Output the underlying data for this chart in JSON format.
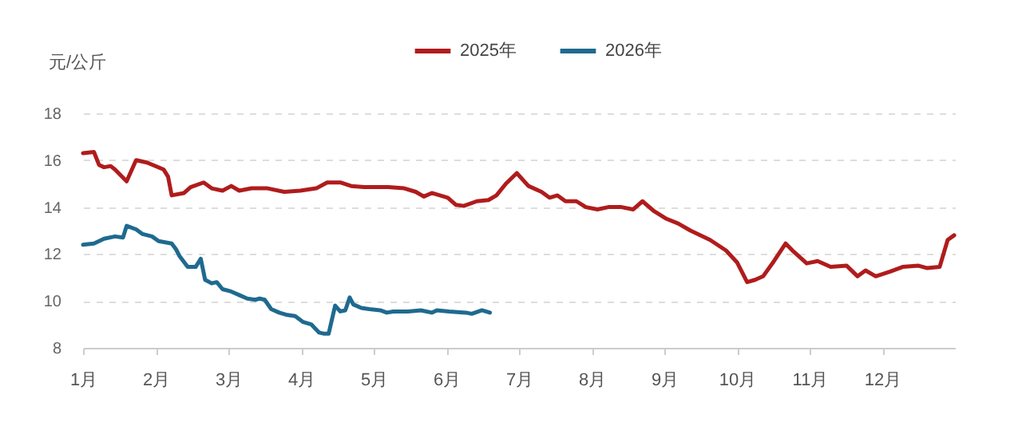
{
  "chart_data": {
    "type": "line",
    "ylabel": "元/公斤",
    "xlim": [
      1,
      13
    ],
    "xticks": [
      {
        "value": 1,
        "label": "1月"
      },
      {
        "value": 2,
        "label": "2月"
      },
      {
        "value": 3,
        "label": "3月"
      },
      {
        "value": 4,
        "label": "4月"
      },
      {
        "value": 5,
        "label": "5月"
      },
      {
        "value": 6,
        "label": "6月"
      },
      {
        "value": 7,
        "label": "7月"
      },
      {
        "value": 8,
        "label": "8月"
      },
      {
        "value": 9,
        "label": "9月"
      },
      {
        "value": 10,
        "label": "10月"
      },
      {
        "value": 11,
        "label": "11月"
      },
      {
        "value": 12,
        "label": "12月"
      }
    ],
    "ylim": [
      8,
      18
    ],
    "yticks": [
      8,
      10,
      12,
      14,
      16,
      18
    ],
    "grid": "y",
    "legend": "top",
    "marker": "none",
    "line_style": "solid",
    "series": [
      {
        "name": "2025年",
        "color": "#b01c1c",
        "x": [
          1.0,
          1.15,
          1.22,
          1.29,
          1.38,
          1.44,
          1.6,
          1.73,
          1.88,
          2.11,
          2.17,
          2.22,
          2.39,
          2.48,
          2.66,
          2.77,
          2.92,
          3.04,
          3.15,
          3.32,
          3.54,
          3.77,
          3.99,
          4.21,
          4.36,
          4.54,
          4.69,
          4.87,
          5.2,
          5.42,
          5.58,
          5.69,
          5.8,
          6.02,
          6.13,
          6.24,
          6.42,
          6.58,
          6.69,
          6.82,
          6.97,
          7.13,
          7.31,
          7.42,
          7.53,
          7.64,
          7.79,
          7.92,
          8.08,
          8.23,
          8.41,
          8.57,
          8.7,
          8.85,
          9.03,
          9.19,
          9.36,
          9.63,
          9.85,
          10.0,
          10.14,
          10.25,
          10.36,
          10.51,
          10.67,
          10.78,
          10.96,
          11.11,
          11.29,
          11.51,
          11.66,
          11.77,
          11.91,
          12.11,
          12.28,
          12.5,
          12.62,
          12.79,
          12.9,
          12.99
        ],
        "values": [
          16.3,
          16.35,
          15.8,
          15.7,
          15.75,
          15.6,
          15.1,
          16.0,
          15.9,
          15.6,
          15.3,
          14.5,
          14.6,
          14.85,
          15.05,
          14.8,
          14.7,
          14.9,
          14.7,
          14.8,
          14.8,
          14.65,
          14.7,
          14.8,
          15.05,
          15.05,
          14.9,
          14.85,
          14.85,
          14.8,
          14.65,
          14.45,
          14.6,
          14.4,
          14.1,
          14.05,
          14.25,
          14.3,
          14.5,
          15.0,
          15.45,
          14.9,
          14.65,
          14.4,
          14.5,
          14.25,
          14.25,
          14.0,
          13.9,
          14.0,
          14.0,
          13.9,
          14.25,
          13.85,
          13.5,
          13.3,
          13.0,
          12.6,
          12.15,
          11.65,
          10.8,
          10.9,
          11.05,
          11.7,
          12.45,
          12.1,
          11.6,
          11.7,
          11.45,
          11.5,
          11.05,
          11.3,
          11.05,
          11.25,
          11.45,
          11.5,
          11.4,
          11.45,
          12.6,
          12.8
        ]
      },
      {
        "name": "2026年",
        "color": "#1f6a8f",
        "x": [
          1.0,
          1.15,
          1.29,
          1.44,
          1.55,
          1.6,
          1.73,
          1.82,
          1.95,
          2.04,
          2.22,
          2.28,
          2.33,
          2.44,
          2.55,
          2.62,
          2.68,
          2.77,
          2.84,
          2.92,
          3.04,
          3.15,
          3.26,
          3.37,
          3.43,
          3.5,
          3.59,
          3.7,
          3.81,
          3.92,
          4.03,
          4.14,
          4.25,
          4.32,
          4.38,
          4.47,
          4.54,
          4.61,
          4.67,
          4.72,
          4.83,
          4.94,
          5.09,
          5.18,
          5.27,
          5.47,
          5.65,
          5.8,
          5.87,
          6.04,
          6.27,
          6.35,
          6.49,
          6.6
        ],
        "values": [
          12.4,
          12.45,
          12.65,
          12.75,
          12.7,
          13.2,
          13.05,
          12.85,
          12.75,
          12.55,
          12.45,
          12.2,
          11.9,
          11.45,
          11.45,
          11.8,
          10.9,
          10.75,
          10.8,
          10.5,
          10.4,
          10.25,
          10.1,
          10.05,
          10.1,
          10.05,
          9.65,
          9.5,
          9.4,
          9.35,
          9.1,
          9.0,
          8.65,
          8.6,
          8.6,
          9.8,
          9.55,
          9.6,
          10.15,
          9.85,
          9.7,
          9.65,
          9.6,
          9.5,
          9.55,
          9.55,
          9.6,
          9.5,
          9.6,
          9.55,
          9.5,
          9.45,
          9.6,
          9.5
        ]
      }
    ]
  }
}
